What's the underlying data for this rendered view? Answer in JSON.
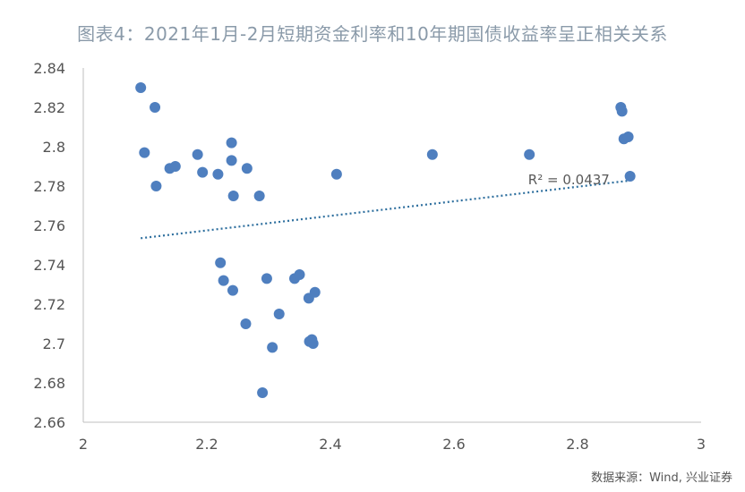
{
  "source_text": "数据来源：Wind, 兴业证券",
  "colors": {
    "point": "#4f7fbf",
    "trend": "#2e6f9e",
    "axis": "#bfbfbf",
    "title": "#8a9aa9"
  },
  "chart_data": {
    "type": "scatter",
    "title": "图表4：2021年1月-2月短期资金利率和10年期国债收益率呈正相关关系",
    "xlabel": "",
    "ylabel": "",
    "xlim": [
      2,
      3
    ],
    "ylim": [
      2.66,
      2.84
    ],
    "x_ticks": [
      "2",
      "2.2",
      "2.4",
      "2.6",
      "2.8",
      "3"
    ],
    "y_ticks": [
      "2.66",
      "2.68",
      "2.7",
      "2.72",
      "2.74",
      "2.76",
      "2.78",
      "2.8",
      "2.82",
      "2.84"
    ],
    "grid": false,
    "series": [
      {
        "points": [
          [
            2.093,
            2.83
          ],
          [
            2.099,
            2.797
          ],
          [
            2.116,
            2.82
          ],
          [
            2.118,
            2.78
          ],
          [
            2.14,
            2.789
          ],
          [
            2.149,
            2.79
          ],
          [
            2.185,
            2.796
          ],
          [
            2.193,
            2.787
          ],
          [
            2.218,
            2.786
          ],
          [
            2.24,
            2.802
          ],
          [
            2.24,
            2.793
          ],
          [
            2.243,
            2.775
          ],
          [
            2.265,
            2.789
          ],
          [
            2.285,
            2.775
          ],
          [
            2.222,
            2.741
          ],
          [
            2.227,
            2.732
          ],
          [
            2.242,
            2.727
          ],
          [
            2.263,
            2.71
          ],
          [
            2.29,
            2.675
          ],
          [
            2.297,
            2.733
          ],
          [
            2.306,
            2.698
          ],
          [
            2.317,
            2.715
          ],
          [
            2.342,
            2.733
          ],
          [
            2.35,
            2.735
          ],
          [
            2.365,
            2.723
          ],
          [
            2.366,
            2.701
          ],
          [
            2.37,
            2.702
          ],
          [
            2.372,
            2.7
          ],
          [
            2.375,
            2.726
          ],
          [
            2.41,
            2.786
          ],
          [
            2.565,
            2.796
          ],
          [
            2.722,
            2.796
          ],
          [
            2.87,
            2.82
          ],
          [
            2.872,
            2.818
          ],
          [
            2.875,
            2.804
          ],
          [
            2.882,
            2.805
          ],
          [
            2.885,
            2.785
          ]
        ]
      }
    ],
    "trendline": {
      "x": [
        2.093,
        2.885
      ],
      "y": [
        2.7535,
        2.7828
      ],
      "style": "dotted"
    },
    "annotation": "R² = 0.0437"
  }
}
